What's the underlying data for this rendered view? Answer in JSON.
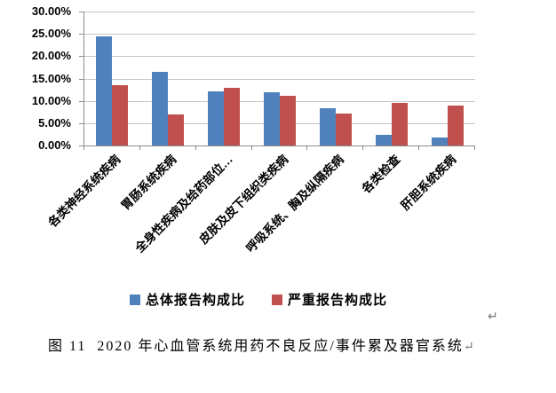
{
  "chart_data": {
    "type": "bar",
    "title": "",
    "xlabel": "",
    "ylabel": "",
    "categories": [
      "各类神经系统疾病",
      "胃肠系统疾病",
      "全身性疾病及给药部位…",
      "皮肤及皮下组织类疾病",
      "呼吸系统、胸及纵隔疾病",
      "各类检查",
      "肝胆系统疾病"
    ],
    "series": [
      {
        "name": "总体报告构成比",
        "color": "#4F81BD",
        "values": [
          24.4,
          16.4,
          12.2,
          11.9,
          8.3,
          2.4,
          1.8
        ]
      },
      {
        "name": "严重报告构成比",
        "color": "#C0504D",
        "values": [
          13.5,
          7.0,
          13.0,
          11.2,
          7.1,
          9.5,
          9.0
        ]
      }
    ],
    "ylim": [
      0,
      30
    ],
    "ytick_step": 5,
    "ytick_labels": [
      "0.00%",
      "5.00%",
      "10.00%",
      "15.00%",
      "20.00%",
      "25.00%",
      "30.00%"
    ],
    "grid": true,
    "legend_position": "bottom"
  },
  "caption": {
    "text": "图 11  2020 年心血管系统用药不良反应/事件累及器官系统"
  },
  "marks": {
    "return_mark": "↵"
  },
  "colors": {
    "series1": "#4F81BD",
    "series2": "#C0504D",
    "gridline": "#c6c6c6",
    "axis": "#8c8c8c",
    "text": "#000000",
    "return_mark": "#777777"
  }
}
